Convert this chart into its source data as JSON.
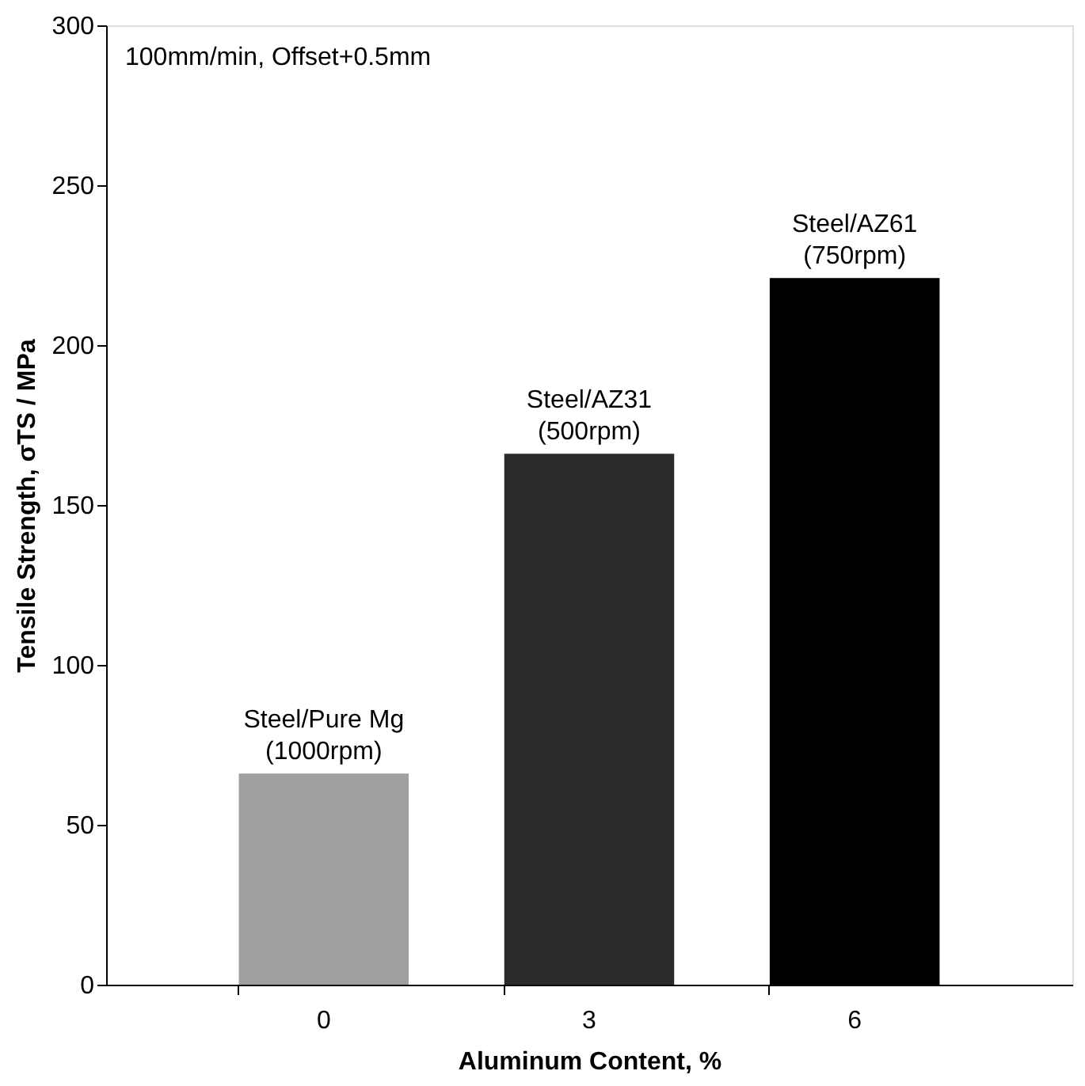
{
  "chart_data": {
    "type": "bar",
    "xlabel": "Aluminum Content, %",
    "ylabel": "Tensile Strength, σTS / MPa",
    "categories": [
      "0",
      "3",
      "6"
    ],
    "values": [
      66,
      166,
      221
    ],
    "colors": [
      "#a0a0a0",
      "#2a2a2a",
      "#000000"
    ],
    "ylim": [
      0,
      300
    ],
    "yticks": [
      0,
      50,
      100,
      150,
      200,
      250,
      300
    ],
    "grid": false,
    "annotations": [
      "100mm/min, Offset+0.5mm",
      {
        "text": "Steel/Pure Mg\n(1000rpm)",
        "x": "0",
        "y": 66
      },
      {
        "text": "Steel/AZ31\n(500rpm)",
        "x": "3",
        "y": 166
      },
      {
        "text": "Steel/AZ61\n(750rpm)",
        "x": "6",
        "y": 221
      }
    ]
  }
}
